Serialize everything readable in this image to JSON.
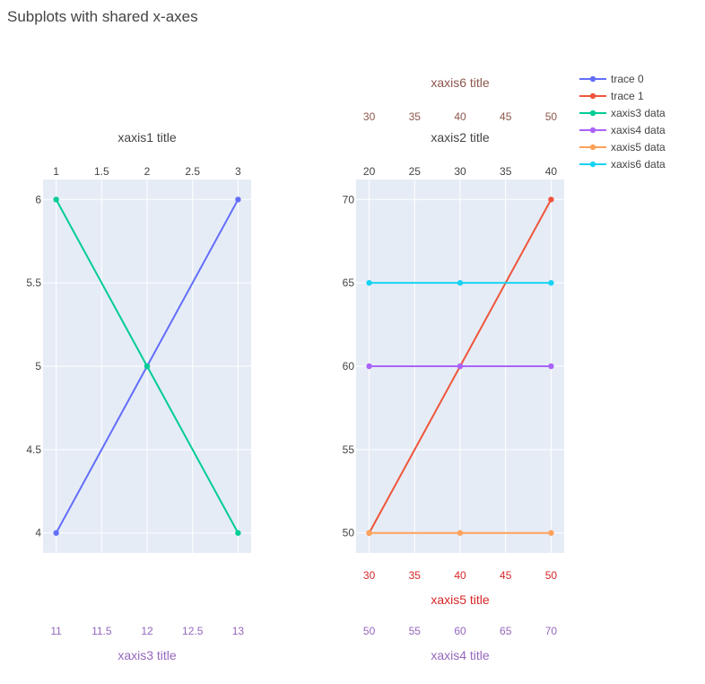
{
  "figure": {
    "title": "Subplots with shared x-axes",
    "background_color": "#ffffff",
    "plot_background_color": "#e5ecf6",
    "grid_color": "#ffffff",
    "default_text_color": "#444444"
  },
  "chart_data": [
    {
      "type": "line",
      "id": "left-subplot",
      "markers": true,
      "grid": true,
      "yaxis": {
        "title": "",
        "ylim": [
          3.88,
          6.12
        ],
        "ticks": [
          4,
          4.5,
          5,
          5.5,
          6
        ],
        "tick_labels": [
          "4",
          "4.5",
          "5",
          "5.5",
          "6"
        ],
        "side": "left",
        "color": "#444444"
      },
      "xaxes": [
        {
          "id": "xaxis1",
          "title": "xaxis1 title",
          "side": "top",
          "color": "#444444",
          "range": [
            0.856,
            3.144
          ],
          "ticks": [
            1,
            1.5,
            2,
            2.5,
            3
          ],
          "tick_labels": [
            "1",
            "1.5",
            "2",
            "2.5",
            "3"
          ]
        },
        {
          "id": "xaxis3",
          "title": "xaxis3 title",
          "side": "bottom",
          "color": "#9467bd",
          "range": [
            10.856,
            13.144
          ],
          "ticks": [
            11,
            11.5,
            12,
            12.5,
            13
          ],
          "tick_labels": [
            "11",
            "11.5",
            "12",
            "12.5",
            "13"
          ]
        }
      ],
      "series": [
        {
          "name": "trace 0",
          "color": "#636efa",
          "xaxis": "xaxis1",
          "x": [
            1,
            2,
            3
          ],
          "y": [
            4,
            5,
            6
          ]
        },
        {
          "name": "xaxis3 data",
          "color": "#00cc96",
          "xaxis": "xaxis3",
          "x": [
            11,
            12,
            13
          ],
          "y": [
            6,
            5,
            4
          ]
        }
      ]
    },
    {
      "type": "line",
      "id": "right-subplot",
      "markers": true,
      "grid": true,
      "yaxis": {
        "title": "",
        "ylim": [
          48.8,
          71.2
        ],
        "ticks": [
          50,
          55,
          60,
          65,
          70
        ],
        "tick_labels": [
          "50",
          "55",
          "60",
          "65",
          "70"
        ],
        "side": "left",
        "color": "#444444"
      },
      "xaxes": [
        {
          "id": "xaxis2",
          "title": "xaxis2 title",
          "side": "top",
          "color": "#444444",
          "range": [
            18.56,
            41.44
          ],
          "ticks": [
            20,
            25,
            30,
            35,
            40
          ],
          "tick_labels": [
            "20",
            "25",
            "30",
            "35",
            "40"
          ]
        },
        {
          "id": "xaxis6",
          "title": "xaxis6 title",
          "side": "top",
          "color": "#8c564b",
          "range": [
            28.56,
            51.44
          ],
          "ticks": [
            30,
            35,
            40,
            45,
            50
          ],
          "tick_labels": [
            "30",
            "35",
            "40",
            "45",
            "50"
          ]
        },
        {
          "id": "xaxis5",
          "title": "xaxis5 title",
          "side": "bottom",
          "color": "#d62728",
          "range": [
            28.56,
            51.44
          ],
          "ticks": [
            30,
            35,
            40,
            45,
            50
          ],
          "tick_labels": [
            "30",
            "35",
            "40",
            "45",
            "50"
          ]
        },
        {
          "id": "xaxis4",
          "title": "xaxis4 title",
          "side": "bottom",
          "color": "#9467bd",
          "range": [
            48.56,
            71.44
          ],
          "ticks": [
            50,
            55,
            60,
            65,
            70
          ],
          "tick_labels": [
            "50",
            "55",
            "60",
            "65",
            "70"
          ]
        }
      ],
      "series": [
        {
          "name": "trace 1",
          "color": "#ef553b",
          "xaxis": "xaxis2",
          "x": [
            20,
            30,
            40
          ],
          "y": [
            50,
            60,
            70
          ]
        },
        {
          "name": "xaxis4 data",
          "color": "#ab63fa",
          "xaxis": "xaxis4",
          "x": [
            50,
            60,
            70
          ],
          "y": [
            60,
            60,
            60
          ]
        },
        {
          "name": "xaxis5 data",
          "color": "#ffa15a",
          "xaxis": "xaxis5",
          "x": [
            30,
            40,
            50
          ],
          "y": [
            50,
            50,
            50
          ]
        },
        {
          "name": "xaxis6 data",
          "color": "#19d3f3",
          "xaxis": "xaxis6",
          "x": [
            30,
            40,
            50
          ],
          "y": [
            65,
            65,
            65
          ]
        }
      ]
    }
  ],
  "legend": {
    "placement": "top-right",
    "items": [
      {
        "name": "trace 0",
        "color": "#636efa"
      },
      {
        "name": "trace 1",
        "color": "#ef553b"
      },
      {
        "name": "xaxis3 data",
        "color": "#00cc96"
      },
      {
        "name": "xaxis4 data",
        "color": "#ab63fa"
      },
      {
        "name": "xaxis5 data",
        "color": "#ffa15a"
      },
      {
        "name": "xaxis6 data",
        "color": "#19d3f3"
      }
    ]
  }
}
